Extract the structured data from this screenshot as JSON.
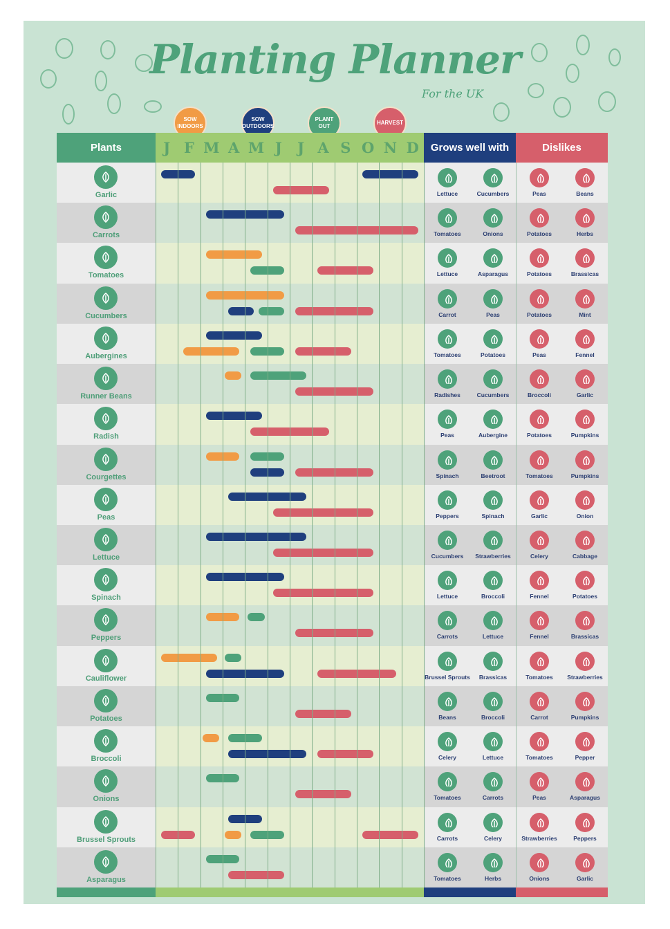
{
  "title": "Planting Planner",
  "subtitle": "For the UK",
  "colors": {
    "background": "#c9e3d3",
    "green": "#4ea27a",
    "blue": "#1f3f7e",
    "red": "#d65f6b",
    "orange": "#f19b45",
    "months_header": "#9fcb72"
  },
  "legend": [
    {
      "key": "I",
      "label": "SOW INDOORS",
      "color": "#f19b45"
    },
    {
      "key": "O",
      "label": "SOW OUTDOORS",
      "color": "#1f3f7e"
    },
    {
      "key": "P",
      "label": "PLANT OUT",
      "color": "#4ea27a"
    },
    {
      "key": "H",
      "label": "HARVEST",
      "color": "#d65f6b"
    }
  ],
  "headers": {
    "plants": "Plants",
    "grows_well": "Grows well with",
    "dislikes": "Dislikes"
  },
  "months": [
    "J",
    "F",
    "M",
    "A",
    "M",
    "J",
    "J",
    "A",
    "S",
    "O",
    "N",
    "D"
  ],
  "plants": [
    {
      "name": "Garlic",
      "icon": "garlic-icon",
      "bars": [
        [
          {
            "t": "O",
            "s": 0.25,
            "e": 1.75
          },
          {
            "t": "O",
            "s": 9.25,
            "e": 11.75
          }
        ],
        [
          {
            "t": "H",
            "s": 5.25,
            "e": 7.75
          }
        ]
      ],
      "grows": [
        "Lettuce",
        "Cucumbers"
      ],
      "dislikes": [
        "Peas",
        "Beans"
      ]
    },
    {
      "name": "Carrots",
      "icon": "carrot-icon",
      "bars": [
        [
          {
            "t": "O",
            "s": 2.25,
            "e": 5.75
          }
        ],
        [
          {
            "t": "H",
            "s": 6.25,
            "e": 11.75
          }
        ]
      ],
      "grows": [
        "Tomatoes",
        "Onions"
      ],
      "dislikes": [
        "Potatoes",
        "Herbs"
      ]
    },
    {
      "name": "Tomatoes",
      "icon": "tomato-icon",
      "bars": [
        [
          {
            "t": "I",
            "s": 2.25,
            "e": 4.75
          }
        ],
        [
          {
            "t": "P",
            "s": 4.25,
            "e": 5.75
          },
          {
            "t": "H",
            "s": 7.25,
            "e": 9.75
          }
        ]
      ],
      "grows": [
        "Lettuce",
        "Asparagus"
      ],
      "dislikes": [
        "Potatoes",
        "Brassicas"
      ]
    },
    {
      "name": "Cucumbers",
      "icon": "cucumber-icon",
      "bars": [
        [
          {
            "t": "I",
            "s": 2.25,
            "e": 5.75
          }
        ],
        [
          {
            "t": "O",
            "s": 3.25,
            "e": 4.4
          },
          {
            "t": "P",
            "s": 4.6,
            "e": 5.75
          },
          {
            "t": "H",
            "s": 6.25,
            "e": 9.75
          }
        ]
      ],
      "grows": [
        "Carrot",
        "Peas"
      ],
      "dislikes": [
        "Potatoes",
        "Mint"
      ]
    },
    {
      "name": "Aubergines",
      "icon": "aubergine-icon",
      "bars": [
        [
          {
            "t": "O",
            "s": 2.25,
            "e": 4.75
          }
        ],
        [
          {
            "t": "I",
            "s": 1.25,
            "e": 3.75
          },
          {
            "t": "P",
            "s": 4.25,
            "e": 5.75
          },
          {
            "t": "H",
            "s": 6.25,
            "e": 8.75
          }
        ]
      ],
      "grows": [
        "Tomatoes",
        "Potatoes"
      ],
      "dislikes": [
        "Peas",
        "Fennel"
      ]
    },
    {
      "name": "Runner Beans",
      "icon": "beans-icon",
      "bars": [
        [
          {
            "t": "I",
            "s": 3.1,
            "e": 3.85
          },
          {
            "t": "P",
            "s": 4.25,
            "e": 6.75
          }
        ],
        [
          {
            "t": "H",
            "s": 6.25,
            "e": 9.75
          }
        ]
      ],
      "grows": [
        "Radishes",
        "Cucumbers"
      ],
      "dislikes": [
        "Broccoli",
        "Garlic"
      ]
    },
    {
      "name": "Radish",
      "icon": "radish-icon",
      "bars": [
        [
          {
            "t": "O",
            "s": 2.25,
            "e": 4.75
          }
        ],
        [
          {
            "t": "H",
            "s": 4.25,
            "e": 7.75
          }
        ]
      ],
      "grows": [
        "Peas",
        "Aubergine"
      ],
      "dislikes": [
        "Potatoes",
        "Pumpkins"
      ]
    },
    {
      "name": "Courgettes",
      "icon": "courgette-icon",
      "bars": [
        [
          {
            "t": "I",
            "s": 2.25,
            "e": 3.75
          },
          {
            "t": "P",
            "s": 4.25,
            "e": 5.75
          }
        ],
        [
          {
            "t": "O",
            "s": 4.25,
            "e": 5.75
          },
          {
            "t": "H",
            "s": 6.25,
            "e": 9.75
          }
        ]
      ],
      "grows": [
        "Spinach",
        "Beetroot"
      ],
      "dislikes": [
        "Tomatoes",
        "Pumpkins"
      ]
    },
    {
      "name": "Peas",
      "icon": "peas-icon",
      "bars": [
        [
          {
            "t": "O",
            "s": 3.25,
            "e": 6.75
          }
        ],
        [
          {
            "t": "H",
            "s": 5.25,
            "e": 9.75
          }
        ]
      ],
      "grows": [
        "Peppers",
        "Spinach"
      ],
      "dislikes": [
        "Garlic",
        "Onion"
      ]
    },
    {
      "name": "Lettuce",
      "icon": "lettuce-icon",
      "bars": [
        [
          {
            "t": "O",
            "s": 2.25,
            "e": 6.75
          }
        ],
        [
          {
            "t": "H",
            "s": 5.25,
            "e": 9.75
          }
        ]
      ],
      "grows": [
        "Cucumbers",
        "Strawberries"
      ],
      "dislikes": [
        "Celery",
        "Cabbage"
      ]
    },
    {
      "name": "Spinach",
      "icon": "spinach-icon",
      "bars": [
        [
          {
            "t": "O",
            "s": 2.25,
            "e": 5.75
          }
        ],
        [
          {
            "t": "H",
            "s": 5.25,
            "e": 9.75
          }
        ]
      ],
      "grows": [
        "Lettuce",
        "Broccoli"
      ],
      "dislikes": [
        "Fennel",
        "Potatoes"
      ]
    },
    {
      "name": "Peppers",
      "icon": "pepper-icon",
      "bars": [
        [
          {
            "t": "I",
            "s": 2.25,
            "e": 3.75
          },
          {
            "t": "P",
            "s": 4.1,
            "e": 4.9
          }
        ],
        [
          {
            "t": "H",
            "s": 6.25,
            "e": 9.75
          }
        ]
      ],
      "grows": [
        "Carrots",
        "Lettuce"
      ],
      "dislikes": [
        "Fennel",
        "Brassicas"
      ]
    },
    {
      "name": "Cauliflower",
      "icon": "cauliflower-icon",
      "bars": [
        [
          {
            "t": "I",
            "s": 0.25,
            "e": 2.75
          },
          {
            "t": "P",
            "s": 3.1,
            "e": 3.85
          }
        ],
        [
          {
            "t": "O",
            "s": 2.25,
            "e": 5.75
          },
          {
            "t": "H",
            "s": 7.25,
            "e": 10.75
          }
        ]
      ],
      "grows": [
        "Brussel Sprouts",
        "Brassicas"
      ],
      "dislikes": [
        "Tomatoes",
        "Strawberries"
      ]
    },
    {
      "name": "Potatoes",
      "icon": "potato-icon",
      "bars": [
        [
          {
            "t": "P",
            "s": 2.25,
            "e": 3.75
          }
        ],
        [
          {
            "t": "H",
            "s": 6.25,
            "e": 8.75
          }
        ]
      ],
      "grows": [
        "Beans",
        "Broccoli"
      ],
      "dislikes": [
        "Carrot",
        "Pumpkins"
      ]
    },
    {
      "name": "Broccoli",
      "icon": "broccoli-icon",
      "bars": [
        [
          {
            "t": "I",
            "s": 2.1,
            "e": 2.85
          },
          {
            "t": "P",
            "s": 3.25,
            "e": 4.75
          }
        ],
        [
          {
            "t": "O",
            "s": 3.25,
            "e": 6.75
          },
          {
            "t": "H",
            "s": 7.25,
            "e": 9.75
          }
        ]
      ],
      "grows": [
        "Celery",
        "Lettuce"
      ],
      "dislikes": [
        "Tomatoes",
        "Pepper"
      ]
    },
    {
      "name": "Onions",
      "icon": "onion-icon",
      "bars": [
        [
          {
            "t": "P",
            "s": 2.25,
            "e": 3.75
          }
        ],
        [
          {
            "t": "H",
            "s": 6.25,
            "e": 8.75
          }
        ]
      ],
      "grows": [
        "Tomatoes",
        "Carrots"
      ],
      "dislikes": [
        "Peas",
        "Asparagus"
      ]
    },
    {
      "name": "Brussel Sprouts",
      "icon": "brussel-sprouts-icon",
      "bars": [
        [
          {
            "t": "O",
            "s": 3.25,
            "e": 4.75
          }
        ],
        [
          {
            "t": "H",
            "s": 0.25,
            "e": 1.75
          },
          {
            "t": "I",
            "s": 3.1,
            "e": 3.85
          },
          {
            "t": "P",
            "s": 4.25,
            "e": 5.75
          },
          {
            "t": "H",
            "s": 9.25,
            "e": 11.75
          }
        ]
      ],
      "grows": [
        "Carrots",
        "Celery"
      ],
      "dislikes": [
        "Strawberries",
        "Peppers"
      ]
    },
    {
      "name": "Asparagus",
      "icon": "asparagus-icon",
      "bars": [
        [
          {
            "t": "P",
            "s": 2.25,
            "e": 3.75
          }
        ],
        [
          {
            "t": "H",
            "s": 3.25,
            "e": 5.75
          }
        ]
      ],
      "grows": [
        "Tomatoes",
        "Herbs"
      ],
      "dislikes": [
        "Onions",
        "Garlic"
      ]
    }
  ]
}
